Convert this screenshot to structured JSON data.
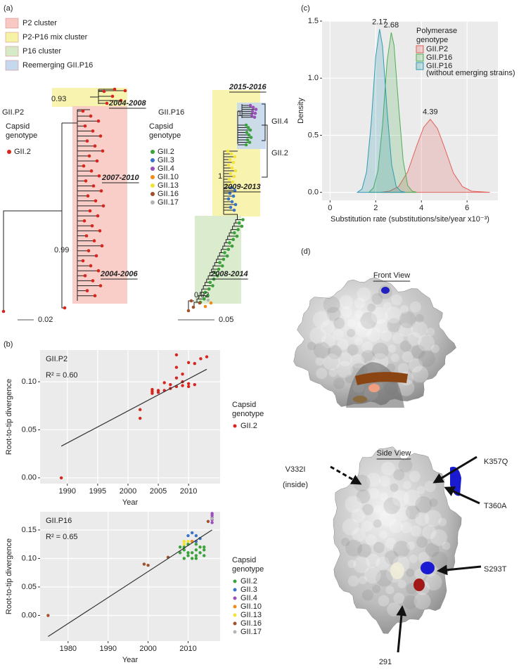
{
  "panel_a": {
    "label": "(a)",
    "legend": [
      {
        "name": "P2 cluster",
        "color": "#f8c8c2"
      },
      {
        "name": "P2-P16 mix cluster",
        "color": "#f7f3a6"
      },
      {
        "name": "P16 cluster",
        "color": "#d6eac8"
      },
      {
        "name": "Reemerging GII.P16",
        "color": "#c6d8ee"
      }
    ],
    "trees": [
      {
        "title": "GII.P2",
        "legend_title": [
          "Capsid",
          "genotype"
        ],
        "genotypes": [
          {
            "name": "GII.2",
            "color": "#d7261e"
          }
        ],
        "clusters": [
          "2004-2008",
          "2007-2010",
          "2004-2006"
        ],
        "support": [
          0.93,
          0.99
        ],
        "scale": 0.02
      },
      {
        "title": "GII.P16",
        "legend_title": [
          "Capsid",
          "genotype"
        ],
        "genotypes": [
          {
            "name": "GII.2",
            "color": "#3aa23a"
          },
          {
            "name": "GII.3",
            "color": "#3a73c8"
          },
          {
            "name": "GII.4",
            "color": "#9b4fb8"
          },
          {
            "name": "GII.10",
            "color": "#f08a1a"
          },
          {
            "name": "GII.13",
            "color": "#f2e23a"
          },
          {
            "name": "GII.16",
            "color": "#a0522d"
          },
          {
            "name": "GII.17",
            "color": "#b5b5b5"
          }
        ],
        "clusters": [
          "2015-2016",
          "2009-2013",
          "2008-2014"
        ],
        "support": [
          1,
          1,
          0.92
        ],
        "subclades": [
          "GII.4",
          "GII.2"
        ],
        "scale": 0.05
      }
    ]
  },
  "chart_data": [
    {
      "type": "scatter",
      "panel_label": "(b)",
      "title": "GII.P2",
      "annotation": "R² = 0.60",
      "x_label": "Year",
      "y_label": "Root-to-tip divergence",
      "legend_title": [
        "Capsid",
        "genotype"
      ],
      "xlim": [
        1985.5,
        2015.2
      ],
      "xticks": [
        1990,
        1995,
        2000,
        2005,
        2010
      ],
      "ylim": [
        -0.006,
        0.133
      ],
      "yticks": [
        {
          "value": 0,
          "label": "0.00"
        },
        {
          "value": 0.05,
          "label": "0.05"
        },
        {
          "value": 0.1,
          "label": "0.10"
        }
      ],
      "grid": true,
      "series": [
        {
          "name": "GII.2",
          "color": "#d7261e",
          "x": [
            1989,
            2002,
            2002,
            2004,
            2004,
            2004,
            2005,
            2005,
            2006,
            2006,
            2007,
            2007,
            2008,
            2008,
            2008,
            2008,
            2009,
            2009,
            2009,
            2010,
            2010,
            2010,
            2011,
            2011,
            2012,
            2013
          ],
          "values": [
            0.0,
            0.071,
            0.062,
            0.092,
            0.09,
            0.088,
            0.089,
            0.091,
            0.091,
            0.099,
            0.097,
            0.093,
            0.128,
            0.115,
            0.104,
            0.095,
            0.096,
            0.1,
            0.108,
            0.098,
            0.095,
            0.12,
            0.097,
            0.119,
            0.124,
            0.126
          ]
        }
      ],
      "trend": {
        "x": [
          1989,
          2013
        ],
        "values": [
          0.033,
          0.113
        ]
      }
    },
    {
      "type": "scatter",
      "title": "GII.P16",
      "annotation": "R² = 0.65",
      "x_label": "Year",
      "y_label": "Root-to-tip divergence",
      "legend_title": [
        "Capsid",
        "genotype"
      ],
      "xlim": [
        1973,
        2018
      ],
      "xticks": [
        1980,
        1990,
        2000,
        2010
      ],
      "ylim": [
        -0.045,
        0.182
      ],
      "yticks": [
        {
          "value": 0,
          "label": "0.00"
        },
        {
          "value": 0.05,
          "label": "0.05"
        },
        {
          "value": 0.1,
          "label": "0.10"
        },
        {
          "value": 0.15,
          "label": "0.15"
        }
      ],
      "grid": true,
      "series": [
        {
          "name": "GII.2",
          "color": "#3aa23a",
          "x": [
            2008,
            2008,
            2009,
            2009,
            2009,
            2010,
            2010,
            2010,
            2011,
            2011,
            2011,
            2012,
            2012,
            2012,
            2012,
            2013,
            2013,
            2014,
            2014,
            2014
          ],
          "values": [
            0.11,
            0.12,
            0.1,
            0.115,
            0.12,
            0.105,
            0.11,
            0.125,
            0.1,
            0.11,
            0.13,
            0.1,
            0.105,
            0.115,
            0.125,
            0.11,
            0.12,
            0.105,
            0.115,
            0.12
          ]
        },
        {
          "name": "GII.3",
          "color": "#3a73c8",
          "x": [
            2010,
            2011,
            2012,
            2012,
            2013
          ],
          "values": [
            0.14,
            0.145,
            0.13,
            0.14,
            0.135
          ]
        },
        {
          "name": "GII.4",
          "color": "#9b4fb8",
          "x": [
            2016,
            2016,
            2016,
            2016,
            2016
          ],
          "values": [
            0.163,
            0.168,
            0.172,
            0.176,
            0.179
          ]
        },
        {
          "name": "GII.10",
          "color": "#f08a1a",
          "x": [
            2011
          ],
          "values": [
            0.13
          ]
        },
        {
          "name": "GII.13",
          "color": "#f2e23a",
          "x": [
            2009,
            2009,
            2010
          ],
          "values": [
            0.13,
            0.125,
            0.13
          ]
        },
        {
          "name": "GII.16",
          "color": "#a0522d",
          "x": [
            1975,
            1999,
            2000,
            2005,
            2015
          ],
          "values": [
            0.0,
            0.09,
            0.088,
            0.102,
            0.165
          ]
        },
        {
          "name": "GII.17",
          "color": "#b5b5b5",
          "x": [
            2016
          ],
          "values": [
            0.17
          ]
        }
      ],
      "trend": {
        "x": [
          1975,
          2016
        ],
        "values": [
          -0.037,
          0.15
        ]
      }
    },
    {
      "type": "density",
      "panel_label": "(c)",
      "x_label": "Substitution rate (substitutions/site/year x10⁻³)",
      "y_label": "Density",
      "legend_title": [
        "Polymerase",
        "genotype"
      ],
      "xlim": [
        -0.35,
        7.35
      ],
      "xticks": [
        0,
        2,
        4,
        6
      ],
      "ylim": [
        -0.07,
        1.5
      ],
      "yticks": [
        {
          "value": 0,
          "label": "0.0"
        },
        {
          "value": 0.5,
          "label": "0.5"
        },
        {
          "value": 1,
          "label": "1.0"
        },
        {
          "value": 1.5,
          "label": "1.5"
        }
      ],
      "grid": true,
      "series": [
        {
          "name": "GII.P2",
          "color": "#e0605a",
          "peak": 4.39,
          "x": [
            2.2,
            2.6,
            3.0,
            3.4,
            3.8,
            4.1,
            4.39,
            4.7,
            5.0,
            5.4,
            5.8,
            6.2,
            7.0
          ],
          "values": [
            0,
            0.01,
            0.05,
            0.18,
            0.41,
            0.57,
            0.64,
            0.56,
            0.4,
            0.17,
            0.05,
            0.01,
            0
          ]
        },
        {
          "name": "GII.P16",
          "color": "#4fae55",
          "peak": 2.68,
          "x": [
            1.7,
            1.9,
            2.1,
            2.3,
            2.5,
            2.68,
            2.8,
            3.0,
            3.2,
            3.4,
            3.6,
            3.8
          ],
          "values": [
            0,
            0.04,
            0.19,
            0.59,
            1.15,
            1.4,
            1.29,
            0.76,
            0.28,
            0.06,
            0.01,
            0
          ]
        },
        {
          "name": "GII.P16",
          "note": "(without emerging strains)",
          "color": "#2f9bb0",
          "peak": 2.17,
          "x": [
            1.2,
            1.4,
            1.6,
            1.8,
            2.0,
            2.17,
            2.3,
            2.5,
            2.7,
            2.9,
            3.1,
            3.3
          ],
          "values": [
            0,
            0.03,
            0.18,
            0.6,
            1.19,
            1.43,
            1.28,
            0.71,
            0.24,
            0.05,
            0.01,
            0
          ]
        }
      ]
    }
  ],
  "panel_d": {
    "label": "(d)",
    "views": [
      "Front View",
      "Side View"
    ],
    "mutations": [
      "V332I",
      "K357Q",
      "T360A",
      "S293T",
      "291"
    ],
    "inside_note": "(inside)"
  }
}
